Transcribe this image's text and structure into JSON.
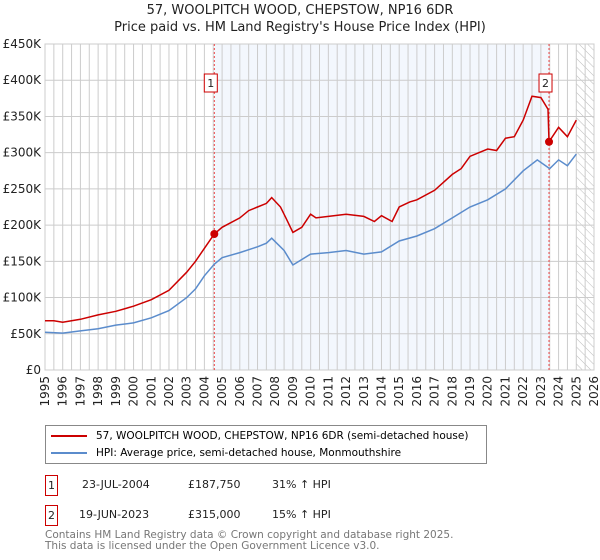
{
  "title": "57, WOOLPITCH WOOD, CHEPSTOW, NP16 6DR",
  "subtitle": "Price paid vs. HM Land Registry's House Price Index (HPI)",
  "chart_data": {
    "type": "line",
    "title": "57, WOOLPITCH WOOD, CHEPSTOW, NP16 6DR — Price paid vs. HM Land Registry's House Price Index (HPI)",
    "xlim": [
      1995,
      2026
    ],
    "ylim": [
      0,
      450000
    ],
    "x_ticks": [
      "1995",
      "1996",
      "1997",
      "1998",
      "1999",
      "2000",
      "2001",
      "2002",
      "2003",
      "2004",
      "2005",
      "2006",
      "2007",
      "2008",
      "2009",
      "2010",
      "2011",
      "2012",
      "2013",
      "2014",
      "2015",
      "2016",
      "2017",
      "2018",
      "2019",
      "2020",
      "2021",
      "2022",
      "2023",
      "2024",
      "2025",
      "2026"
    ],
    "y_ticks": [
      {
        "v": 0,
        "l": "£0"
      },
      {
        "v": 50000,
        "l": "£50K"
      },
      {
        "v": 100000,
        "l": "£100K"
      },
      {
        "v": 150000,
        "l": "£150K"
      },
      {
        "v": 200000,
        "l": "£200K"
      },
      {
        "v": 250000,
        "l": "£250K"
      },
      {
        "v": 300000,
        "l": "£300K"
      },
      {
        "v": 350000,
        "l": "£350K"
      },
      {
        "v": 400000,
        "l": "£400K"
      },
      {
        "v": 450000,
        "l": "£450K"
      }
    ],
    "grid": true,
    "shaded_range": [
      2004.56,
      2023.46
    ],
    "forecast_hatch_from": 2025.0,
    "series": [
      {
        "name": "57, WOOLPITCH WOOD, CHEPSTOW, NP16 6DR (semi-detached house)",
        "color": "#cc0000",
        "x": [
          1995,
          1995.5,
          1996,
          1997,
          1998,
          1999,
          2000,
          2001,
          2002,
          2003,
          2003.5,
          2004,
          2004.56,
          2005,
          2006,
          2006.5,
          2007,
          2007.5,
          2007.8,
          2008.3,
          2008.6,
          2009.0,
          2009.5,
          2010,
          2010.3,
          2011,
          2012,
          2013,
          2013.6,
          2014,
          2014.6,
          2015,
          2015.6,
          2016,
          2017,
          2018,
          2018.5,
          2019,
          2020,
          2020.5,
          2021,
          2021.5,
          2022,
          2022.5,
          2023.0,
          2023.4,
          2023.46,
          2024,
          2024.5,
          2025
        ],
        "y": [
          68000,
          68000,
          66000,
          70000,
          76000,
          81000,
          88000,
          97000,
          110000,
          135000,
          150000,
          168000,
          187750,
          197000,
          210000,
          220000,
          225000,
          230000,
          238000,
          225000,
          210000,
          190000,
          197000,
          215000,
          210000,
          212000,
          215000,
          212000,
          205000,
          213000,
          205000,
          225000,
          232000,
          235000,
          248000,
          270000,
          278000,
          295000,
          305000,
          303000,
          320000,
          322000,
          345000,
          378000,
          376000,
          360000,
          315000,
          335000,
          322000,
          345000
        ]
      },
      {
        "name": "HPI: Average price, semi-detached house, Monmouthshire",
        "color": "#5b8ccc",
        "x": [
          1995,
          1996,
          1997,
          1998,
          1999,
          2000,
          2001,
          2002,
          2003,
          2003.5,
          2004,
          2004.56,
          2005,
          2006,
          2007,
          2007.5,
          2007.8,
          2008.5,
          2009,
          2010,
          2011,
          2012,
          2013,
          2014,
          2015,
          2016,
          2017,
          2018,
          2019,
          2020,
          2021,
          2022,
          2022.8,
          2023.5,
          2024,
          2024.5,
          2025
        ],
        "y": [
          52000,
          51000,
          54000,
          57000,
          62000,
          65000,
          72000,
          82000,
          100000,
          112000,
          130000,
          146000,
          155000,
          162000,
          170000,
          175000,
          182000,
          165000,
          145000,
          160000,
          162000,
          165000,
          160000,
          163000,
          178000,
          185000,
          195000,
          210000,
          225000,
          235000,
          250000,
          275000,
          290000,
          278000,
          290000,
          282000,
          298000
        ]
      }
    ],
    "markers": [
      {
        "label": "1",
        "x": 2004.56,
        "y": 187750
      },
      {
        "label": "2",
        "x": 2023.46,
        "y": 315000
      }
    ]
  },
  "legend": [
    "57, WOOLPITCH WOOD, CHEPSTOW, NP16 6DR (semi-detached house)",
    "HPI: Average price, semi-detached house, Monmouthshire"
  ],
  "transactions": [
    {
      "num": "1",
      "date": "23-JUL-2004",
      "price": "£187,750",
      "hpi": "31% ↑ HPI"
    },
    {
      "num": "2",
      "date": "19-JUN-2023",
      "price": "£315,000",
      "hpi": "15% ↑ HPI"
    }
  ],
  "footer": [
    "Contains HM Land Registry data © Crown copyright and database right 2025.",
    "This data is licensed under the Open Government Licence v3.0."
  ]
}
